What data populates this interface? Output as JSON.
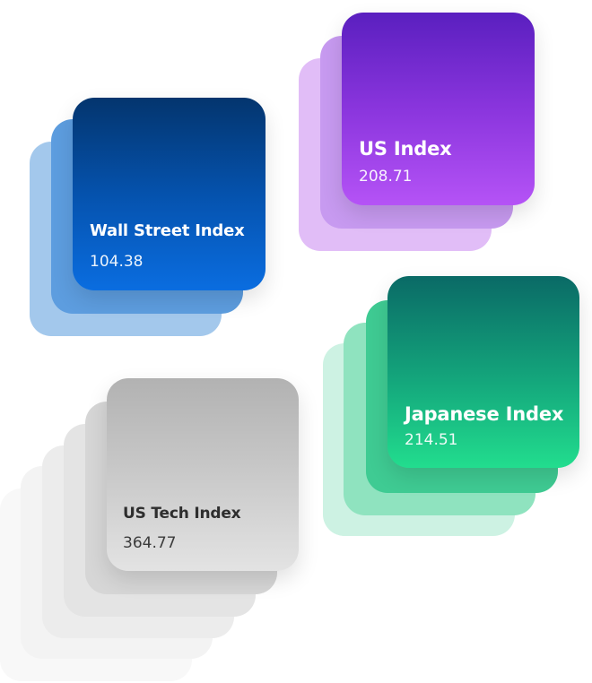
{
  "cards": {
    "wall_street": {
      "title": "Wall Street Index",
      "value": "104.38",
      "color": "#0552ad"
    },
    "us": {
      "title": "US Index",
      "value": "208.71",
      "color": "#8a35dd"
    },
    "japanese": {
      "title": "Japanese Index",
      "value": "214.51",
      "color": "#14a77c"
    },
    "us_tech": {
      "title": "US Tech Index",
      "value": "364.77",
      "color": "#c9c9c9"
    }
  }
}
